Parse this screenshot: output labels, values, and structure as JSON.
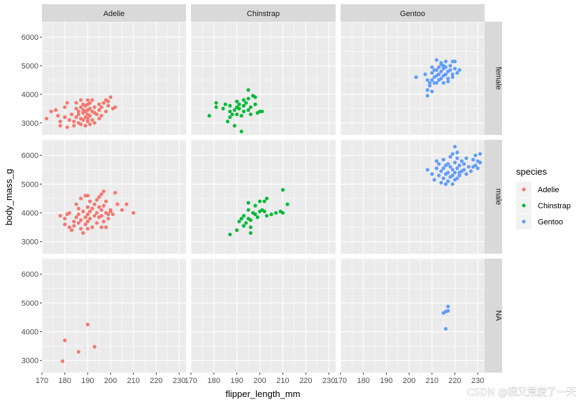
{
  "chart_data": {
    "type": "scatter",
    "xlabel": "flipper_length_mm",
    "ylabel": "body_mass_g",
    "xlim": [
      170,
      233
    ],
    "ylim": [
      2580,
      6540
    ],
    "x_ticks": [
      170,
      180,
      190,
      200,
      210,
      220,
      230
    ],
    "y_ticks": [
      3000,
      4000,
      5000,
      6000
    ],
    "facet_columns": [
      "Adelie",
      "Chinstrap",
      "Gentoo"
    ],
    "facet_rows": [
      "female",
      "male",
      "NA"
    ],
    "legend": {
      "title": "species",
      "placement": "right",
      "items": [
        {
          "label": "Adelie",
          "color": "#f8766d"
        },
        {
          "label": "Chinstrap",
          "color": "#00ba38"
        },
        {
          "label": "Gentoo",
          "color": "#619cff"
        }
      ]
    },
    "grid": true,
    "series": [
      {
        "name": "Adelie",
        "row": "female",
        "color": "#f8766d",
        "points": [
          [
            172,
            3150
          ],
          [
            174,
            3400
          ],
          [
            176,
            3450
          ],
          [
            177,
            3250
          ],
          [
            178,
            3050
          ],
          [
            178,
            2900
          ],
          [
            180,
            3200
          ],
          [
            180,
            3550
          ],
          [
            181,
            3700
          ],
          [
            181,
            2850
          ],
          [
            182,
            3100
          ],
          [
            183,
            3300
          ],
          [
            184,
            3050
          ],
          [
            184,
            2900
          ],
          [
            185,
            3500
          ],
          [
            185,
            3700
          ],
          [
            185,
            3200
          ],
          [
            186,
            3300
          ],
          [
            186,
            3000
          ],
          [
            186,
            3400
          ],
          [
            187,
            3550
          ],
          [
            187,
            3800
          ],
          [
            187,
            2950
          ],
          [
            187,
            3150
          ],
          [
            188,
            3350
          ],
          [
            188,
            3450
          ],
          [
            188,
            3650
          ],
          [
            188,
            3100
          ],
          [
            189,
            3200
          ],
          [
            189,
            2900
          ],
          [
            189,
            3600
          ],
          [
            189,
            3400
          ],
          [
            190,
            3300
          ],
          [
            190,
            3800
          ],
          [
            190,
            3050
          ],
          [
            190,
            3450
          ],
          [
            190,
            3650
          ],
          [
            190,
            3150
          ],
          [
            191,
            3500
          ],
          [
            191,
            3250
          ],
          [
            191,
            2950
          ],
          [
            191,
            3700
          ],
          [
            192,
            3400
          ],
          [
            192,
            3100
          ],
          [
            192,
            3800
          ],
          [
            193,
            3350
          ],
          [
            193,
            3550
          ],
          [
            193,
            3000
          ],
          [
            194,
            3300
          ],
          [
            195,
            3650
          ],
          [
            195,
            3150
          ],
          [
            195,
            3450
          ],
          [
            196,
            3550
          ],
          [
            196,
            3250
          ],
          [
            197,
            3700
          ],
          [
            198,
            3800
          ],
          [
            198,
            3400
          ],
          [
            199,
            3750
          ],
          [
            199,
            3600
          ],
          [
            200,
            3900
          ],
          [
            201,
            3500
          ],
          [
            202,
            3550
          ]
        ]
      },
      {
        "name": "Adelie",
        "row": "male",
        "color": "#f8766d",
        "points": [
          [
            178,
            3900
          ],
          [
            180,
            3800
          ],
          [
            180,
            3600
          ],
          [
            181,
            3950
          ],
          [
            182,
            3500
          ],
          [
            182,
            4000
          ],
          [
            183,
            3400
          ],
          [
            184,
            3700
          ],
          [
            184,
            3550
          ],
          [
            185,
            4300
          ],
          [
            185,
            3850
          ],
          [
            186,
            3950
          ],
          [
            186,
            4150
          ],
          [
            186,
            3650
          ],
          [
            187,
            3450
          ],
          [
            187,
            3750
          ],
          [
            187,
            4500
          ],
          [
            188,
            3300
          ],
          [
            188,
            4050
          ],
          [
            189,
            3600
          ],
          [
            189,
            3850
          ],
          [
            189,
            4600
          ],
          [
            190,
            3950
          ],
          [
            190,
            4200
          ],
          [
            190,
            3700
          ],
          [
            190,
            3450
          ],
          [
            190,
            4600
          ],
          [
            191,
            4400
          ],
          [
            191,
            3800
          ],
          [
            191,
            4050
          ],
          [
            192,
            3500
          ],
          [
            192,
            4150
          ],
          [
            193,
            3900
          ],
          [
            193,
            4300
          ],
          [
            194,
            3650
          ],
          [
            194,
            4000
          ],
          [
            194,
            4450
          ],
          [
            195,
            3850
          ],
          [
            195,
            4200
          ],
          [
            195,
            4550
          ],
          [
            196,
            3500
          ],
          [
            196,
            3900
          ],
          [
            196,
            4100
          ],
          [
            196,
            4650
          ],
          [
            197,
            3700
          ],
          [
            197,
            4250
          ],
          [
            197,
            4750
          ],
          [
            198,
            3500
          ],
          [
            198,
            4000
          ],
          [
            198,
            4400
          ],
          [
            199,
            3800
          ],
          [
            199,
            3950
          ],
          [
            200,
            4050
          ],
          [
            200,
            4100
          ],
          [
            201,
            3950
          ],
          [
            202,
            4700
          ],
          [
            203,
            4300
          ],
          [
            205,
            4100
          ],
          [
            207,
            4300
          ],
          [
            210,
            4000
          ]
        ]
      },
      {
        "name": "Adelie",
        "row": "NA",
        "color": "#f8766d",
        "points": [
          [
            179,
            2975
          ],
          [
            180,
            3700
          ],
          [
            186,
            3300
          ],
          [
            190,
            4250
          ],
          [
            193,
            3475
          ]
        ]
      },
      {
        "name": "Chinstrap",
        "row": "female",
        "color": "#00ba38",
        "points": [
          [
            178,
            3250
          ],
          [
            181,
            3700
          ],
          [
            181,
            3550
          ],
          [
            184,
            3500
          ],
          [
            185,
            3650
          ],
          [
            186,
            3050
          ],
          [
            187,
            3400
          ],
          [
            187,
            3200
          ],
          [
            187,
            3600
          ],
          [
            188,
            3300
          ],
          [
            189,
            3450
          ],
          [
            189,
            2900
          ],
          [
            190,
            3550
          ],
          [
            190,
            3750
          ],
          [
            190,
            3300
          ],
          [
            191,
            3500
          ],
          [
            191,
            3650
          ],
          [
            192,
            3250
          ],
          [
            192,
            2700
          ],
          [
            193,
            3600
          ],
          [
            193,
            3800
          ],
          [
            193,
            3400
          ],
          [
            194,
            3700
          ],
          [
            195,
            3450
          ],
          [
            195,
            3850
          ],
          [
            195,
            4150
          ],
          [
            196,
            3300
          ],
          [
            196,
            3550
          ],
          [
            197,
            3950
          ],
          [
            198,
            3650
          ],
          [
            198,
            3900
          ],
          [
            199,
            3350
          ],
          [
            200,
            3400
          ],
          [
            201,
            3400
          ]
        ]
      },
      {
        "name": "Chinstrap",
        "row": "male",
        "color": "#00ba38",
        "points": [
          [
            187,
            3250
          ],
          [
            190,
            3400
          ],
          [
            191,
            3700
          ],
          [
            192,
            3800
          ],
          [
            193,
            3550
          ],
          [
            193,
            3900
          ],
          [
            194,
            3650
          ],
          [
            195,
            3800
          ],
          [
            195,
            4100
          ],
          [
            195,
            4350
          ],
          [
            196,
            3300
          ],
          [
            196,
            3500
          ],
          [
            196,
            3750
          ],
          [
            197,
            4000
          ],
          [
            198,
            3950
          ],
          [
            198,
            4250
          ],
          [
            199,
            3850
          ],
          [
            200,
            4050
          ],
          [
            200,
            4400
          ],
          [
            201,
            4100
          ],
          [
            202,
            4050
          ],
          [
            202,
            4400
          ],
          [
            203,
            3900
          ],
          [
            203,
            4500
          ],
          [
            205,
            3950
          ],
          [
            207,
            4000
          ],
          [
            209,
            4050
          ],
          [
            210,
            4800
          ],
          [
            210,
            4000
          ],
          [
            212,
            4300
          ]
        ]
      },
      {
        "name": "Chinstrap",
        "row": "NA",
        "color": "#00ba38",
        "points": []
      },
      {
        "name": "Gentoo",
        "row": "female",
        "color": "#619cff",
        "points": [
          [
            203,
            4600
          ],
          [
            207,
            4700
          ],
          [
            208,
            4500
          ],
          [
            208,
            3950
          ],
          [
            208,
            4150
          ],
          [
            209,
            4400
          ],
          [
            209,
            4300
          ],
          [
            210,
            4750
          ],
          [
            210,
            4500
          ],
          [
            210,
            4100
          ],
          [
            210,
            4950
          ],
          [
            211,
            4600
          ],
          [
            211,
            4850
          ],
          [
            211,
            4400
          ],
          [
            212,
            5200
          ],
          [
            212,
            4650
          ],
          [
            212,
            4850
          ],
          [
            212,
            4400
          ],
          [
            213,
            4700
          ],
          [
            213,
            4950
          ],
          [
            213,
            4500
          ],
          [
            214,
            5100
          ],
          [
            214,
            4800
          ],
          [
            214,
            4550
          ],
          [
            214,
            5050
          ],
          [
            215,
            4650
          ],
          [
            215,
            5000
          ],
          [
            215,
            4900
          ],
          [
            215,
            4400
          ],
          [
            216,
            4700
          ],
          [
            216,
            4950
          ],
          [
            216,
            5150
          ],
          [
            217,
            4550
          ],
          [
            217,
            4800
          ],
          [
            217,
            4450
          ],
          [
            218,
            4850
          ],
          [
            218,
            5000
          ],
          [
            219,
            4700
          ],
          [
            219,
            5150
          ],
          [
            219,
            4600
          ],
          [
            220,
            4900
          ],
          [
            220,
            5150
          ],
          [
            221,
            4750
          ],
          [
            222,
            4850
          ]
        ]
      },
      {
        "name": "Gentoo",
        "row": "male",
        "color": "#619cff",
        "points": [
          [
            208,
            5500
          ],
          [
            210,
            5350
          ],
          [
            211,
            5150
          ],
          [
            212,
            5550
          ],
          [
            212,
            5800
          ],
          [
            213,
            5300
          ],
          [
            213,
            5700
          ],
          [
            214,
            5450
          ],
          [
            214,
            5050
          ],
          [
            215,
            5200
          ],
          [
            215,
            5550
          ],
          [
            215,
            5850
          ],
          [
            216,
            5000
          ],
          [
            216,
            5350
          ],
          [
            216,
            5650
          ],
          [
            217,
            5400
          ],
          [
            217,
            5700
          ],
          [
            217,
            5100
          ],
          [
            218,
            5250
          ],
          [
            218,
            5600
          ],
          [
            218,
            5950
          ],
          [
            219,
            5000
          ],
          [
            219,
            5300
          ],
          [
            219,
            5500
          ],
          [
            219,
            6050
          ],
          [
            220,
            5150
          ],
          [
            220,
            5400
          ],
          [
            220,
            5750
          ],
          [
            220,
            6300
          ],
          [
            221,
            5200
          ],
          [
            221,
            5550
          ],
          [
            221,
            5900
          ],
          [
            221,
            6100
          ],
          [
            222,
            5300
          ],
          [
            222,
            5650
          ],
          [
            222,
            5400
          ],
          [
            223,
            5800
          ],
          [
            223,
            5450
          ],
          [
            224,
            5500
          ],
          [
            224,
            5700
          ],
          [
            225,
            5350
          ],
          [
            225,
            5900
          ],
          [
            226,
            5600
          ],
          [
            227,
            5450
          ],
          [
            228,
            5850
          ],
          [
            228,
            5600
          ],
          [
            229,
            5650
          ],
          [
            229,
            6000
          ],
          [
            230,
            5800
          ],
          [
            230,
            5550
          ],
          [
            231,
            5750
          ],
          [
            231,
            6050
          ]
        ]
      },
      {
        "name": "Gentoo",
        "row": "NA",
        "color": "#619cff",
        "points": [
          [
            215,
            4650
          ],
          [
            216,
            4700
          ],
          [
            216,
            4100
          ],
          [
            217,
            4875
          ],
          [
            217,
            4725
          ]
        ]
      }
    ]
  },
  "watermark": "CSDN @我又荒废了一天"
}
